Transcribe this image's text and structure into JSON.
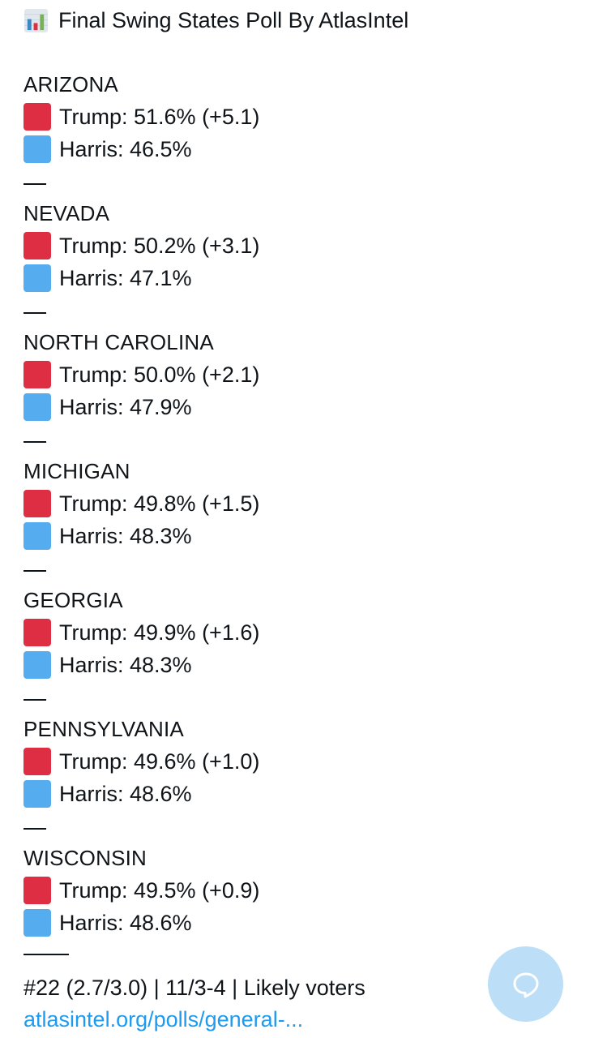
{
  "tweet": {
    "title": "Final Swing States Poll By AtlasIntel",
    "title_icon": "bar-chart-icon",
    "states": [
      {
        "name": "ARIZONA",
        "trump": "Trump: 51.6% (+5.1)",
        "harris": "Harris: 46.5%"
      },
      {
        "name": "NEVADA",
        "trump": "Trump: 50.2% (+3.1)",
        "harris": "Harris: 47.1%"
      },
      {
        "name": "NORTH CAROLINA",
        "trump": "Trump: 50.0% (+2.1)",
        "harris": "Harris: 47.9%"
      },
      {
        "name": "MICHIGAN",
        "trump": "Trump: 49.8% (+1.5)",
        "harris": "Harris: 48.3%"
      },
      {
        "name": "GEORGIA",
        "trump": "Trump: 49.9% (+1.6)",
        "harris": "Harris: 48.3%"
      },
      {
        "name": "PENNSYLVANIA",
        "trump": "Trump: 49.6% (+1.0)",
        "harris": "Harris: 48.6%"
      },
      {
        "name": "WISCONSIN",
        "trump": "Trump: 49.5% (+0.9)",
        "harris": "Harris: 48.6%"
      }
    ],
    "footer": "#22 (2.7/3.0) | 11/3-4 | Likely voters",
    "link": "atlasintel.org/polls/general-..."
  },
  "colors": {
    "trump_square": "#dd2e44",
    "harris_square": "#55acee",
    "link": "#1d9bf0",
    "fab": "#bcdff7"
  },
  "fab": {
    "icon": "chat-bubble-icon"
  }
}
